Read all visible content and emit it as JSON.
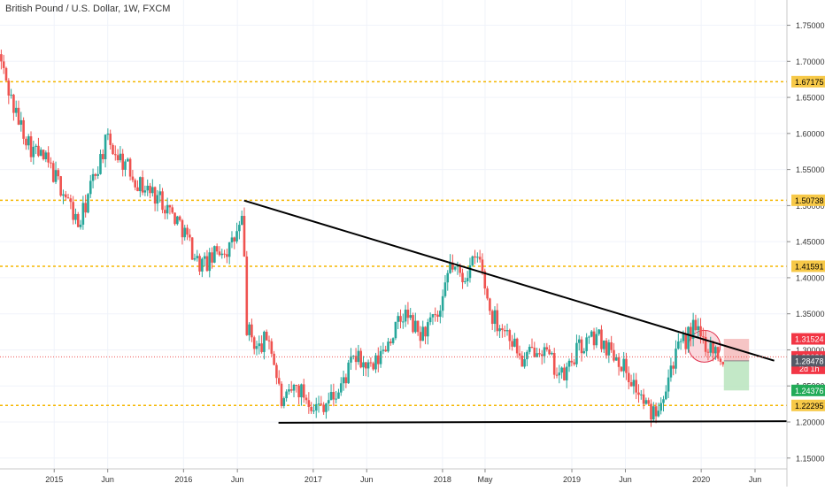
{
  "header": {
    "symbol_title": "British Pound / U.S. Dollar, 1W, FXCM"
  },
  "colors": {
    "up": "#26a69a",
    "down": "#ef5350",
    "level_line": "#f5b700",
    "level_label_bg": "#f7c948",
    "trendline": "#000000",
    "current_price_line": "#ef5350",
    "stop_zone": "#f4b6b6",
    "target_zone": "#b8e4bd",
    "circle_fill": "#f8c7cf",
    "circle_stroke": "#e0334f",
    "grid": "#f0f3fa",
    "axis_text": "#333333"
  },
  "chart_data": {
    "type": "candlestick",
    "title": "British Pound / U.S. Dollar, 1W, FXCM",
    "y_axis": {
      "range": [
        1.135,
        1.785
      ],
      "ticks": [
        "1.15000",
        "1.20000",
        "1.25000",
        "1.30000",
        "1.35000",
        "1.40000",
        "1.45000",
        "1.50000",
        "1.55000",
        "1.60000",
        "1.65000",
        "1.70000",
        "1.75000"
      ],
      "tick_values": [
        1.15,
        1.2,
        1.25,
        1.3,
        1.35,
        1.4,
        1.45,
        1.5,
        1.55,
        1.6,
        1.65,
        1.7,
        1.75
      ]
    },
    "x_axis": {
      "range": [
        "2014-08-01",
        "2020-08-30"
      ],
      "ticks": [
        {
          "label": "2015",
          "date": "2015-01-01"
        },
        {
          "label": "Jun",
          "date": "2015-06-01"
        },
        {
          "label": "2016",
          "date": "2016-01-01"
        },
        {
          "label": "Jun",
          "date": "2016-06-01"
        },
        {
          "label": "2017",
          "date": "2017-01-01"
        },
        {
          "label": "Jun",
          "date": "2017-06-01"
        },
        {
          "label": "2018",
          "date": "2018-01-01"
        },
        {
          "label": "May",
          "date": "2018-05-01"
        },
        {
          "label": "2019",
          "date": "2019-01-01"
        },
        {
          "label": "Jun",
          "date": "2019-06-01"
        },
        {
          "label": "2020",
          "date": "2020-01-01"
        },
        {
          "label": "Jun",
          "date": "2020-06-01"
        }
      ]
    },
    "price_path": [
      [
        "2014-08-01",
        1.71
      ],
      [
        "2014-09-15",
        1.63
      ],
      [
        "2014-11-01",
        1.58
      ],
      [
        "2014-12-15",
        1.56
      ],
      [
        "2015-02-10",
        1.51
      ],
      [
        "2015-03-15",
        1.47
      ],
      [
        "2015-04-20",
        1.53
      ],
      [
        "2015-06-01",
        1.59
      ],
      [
        "2015-07-20",
        1.56
      ],
      [
        "2015-09-01",
        1.53
      ],
      [
        "2015-11-01",
        1.51
      ],
      [
        "2016-01-01",
        1.47
      ],
      [
        "2016-02-15",
        1.42
      ],
      [
        "2016-03-15",
        1.42
      ],
      [
        "2016-04-15",
        1.44
      ],
      [
        "2016-05-15",
        1.44
      ],
      [
        "2016-06-20",
        1.48
      ],
      [
        "2016-07-01",
        1.33
      ],
      [
        "2016-08-01",
        1.3
      ],
      [
        "2016-09-01",
        1.32
      ],
      [
        "2016-10-10",
        1.22
      ],
      [
        "2016-11-15",
        1.25
      ],
      [
        "2017-01-15",
        1.22
      ],
      [
        "2017-03-15",
        1.24
      ],
      [
        "2017-05-01",
        1.29
      ],
      [
        "2017-06-20",
        1.27
      ],
      [
        "2017-08-01",
        1.31
      ],
      [
        "2017-09-20",
        1.35
      ],
      [
        "2017-11-01",
        1.32
      ],
      [
        "2018-01-01",
        1.35
      ],
      [
        "2018-01-25",
        1.42
      ],
      [
        "2018-03-01",
        1.4
      ],
      [
        "2018-04-17",
        1.43
      ],
      [
        "2018-05-20",
        1.35
      ],
      [
        "2018-07-15",
        1.32
      ],
      [
        "2018-08-20",
        1.28
      ],
      [
        "2018-10-01",
        1.31
      ],
      [
        "2018-12-10",
        1.26
      ],
      [
        "2019-01-20",
        1.3
      ],
      [
        "2019-03-15",
        1.32
      ],
      [
        "2019-05-15",
        1.29
      ],
      [
        "2019-06-20",
        1.26
      ],
      [
        "2019-08-15",
        1.21
      ],
      [
        "2019-09-10",
        1.23
      ],
      [
        "2019-10-20",
        1.29
      ],
      [
        "2019-12-13",
        1.33
      ],
      [
        "2020-01-15",
        1.31
      ],
      [
        "2020-02-15",
        1.3
      ],
      [
        "2020-03-01",
        1.29
      ]
    ],
    "horizontal_levels": [
      {
        "value": 1.67175,
        "label": "1.67175"
      },
      {
        "value": 1.50738,
        "label": "1.50738"
      },
      {
        "value": 1.41591,
        "label": "1.41591"
      },
      {
        "value": 1.22295,
        "label": "1.22295"
      }
    ],
    "trendlines": [
      {
        "name": "descending-resistance",
        "points": [
          [
            "2016-06-20",
            1.507
          ],
          [
            "2020-07-25",
            1.285
          ]
        ]
      },
      {
        "name": "horizontal-support",
        "points": [
          [
            "2016-09-25",
            1.199
          ],
          [
            "2020-08-30",
            1.201
          ]
        ]
      }
    ],
    "current_price": {
      "value": 1.29031,
      "label": "1.29031",
      "countdown": "2d 1h"
    },
    "position": {
      "start": "2020-03-05",
      "end": "2020-05-15",
      "stop": {
        "value": 1.31524,
        "label": "1.31524"
      },
      "entry": {
        "value": 1.28478,
        "label": "1.28478"
      },
      "target": {
        "value": 1.24376,
        "label": "1.24376"
      }
    },
    "highlight_circle": {
      "center": [
        "2020-01-10",
        1.305
      ],
      "radius_days": 45
    }
  }
}
